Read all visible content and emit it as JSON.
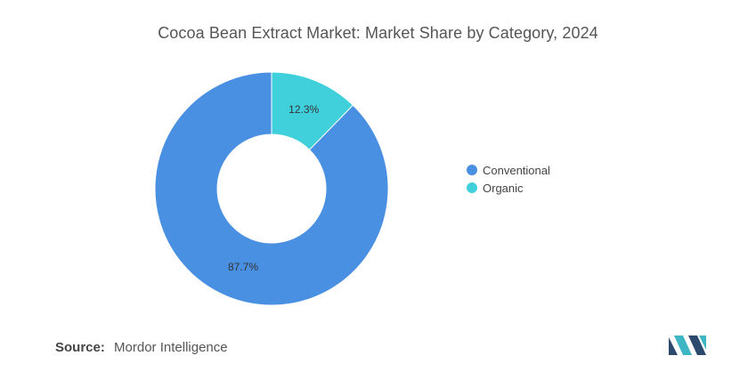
{
  "colors": {
    "conventional": "#4a90e2",
    "organic": "#40d0dc",
    "logo_dark": "#2c4a6e",
    "logo_teal": "#3fb6c4"
  },
  "chart_data": {
    "type": "pie",
    "title": "Cocoa Bean Extract Market: Market Share by Category, 2024",
    "donut": true,
    "slices": [
      {
        "name": "Organic",
        "value": 12.3,
        "label": "12.3%",
        "color": "#40d0dc"
      },
      {
        "name": "Conventional",
        "value": 87.7,
        "label": "87.7%",
        "color": "#4a90e2"
      }
    ],
    "legend": {
      "position": "right",
      "items": [
        {
          "name": "Conventional",
          "color": "#4a90e2"
        },
        {
          "name": "Organic",
          "color": "#40d0dc"
        }
      ]
    }
  },
  "source": {
    "label": "Source:",
    "value": "Mordor Intelligence"
  },
  "logo": {
    "icon": "mordor-intelligence-logo-icon"
  }
}
